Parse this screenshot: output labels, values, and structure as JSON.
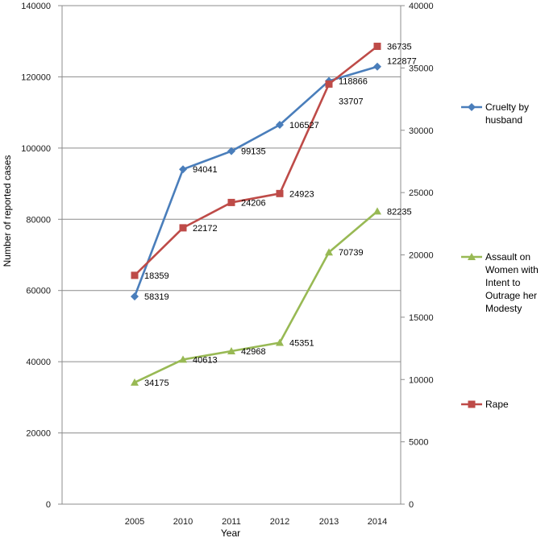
{
  "chart_data": {
    "type": "line",
    "title": "",
    "xlabel": "Year",
    "ylabel": "Number of reported cases",
    "categories": [
      "2005",
      "2010",
      "2011",
      "2012",
      "2013",
      "2014"
    ],
    "y_left": {
      "min": 0,
      "max": 140000,
      "step": 20000,
      "ticks": [
        "0",
        "20000",
        "40000",
        "60000",
        "80000",
        "100000",
        "120000",
        "140000"
      ]
    },
    "y_right": {
      "min": 0,
      "max": 40000,
      "step": 5000,
      "ticks": [
        "0",
        "5000",
        "10000",
        "15000",
        "20000",
        "25000",
        "30000",
        "35000",
        "40000"
      ]
    },
    "grid": true,
    "legend_position": "right",
    "series": [
      {
        "name": "Cruelty by husband",
        "legend_lines": [
          "Cruelty by",
          "husband"
        ],
        "axis": "left",
        "marker": "diamond",
        "color": "#4a7ebb",
        "values": [
          58319,
          94041,
          99135,
          106527,
          118866,
          122877
        ],
        "labels": [
          "58319",
          "94041",
          "99135",
          "106527",
          "118866",
          "122877"
        ]
      },
      {
        "name": "Assault on Women with Intent to Outrage her Modesty",
        "legend_lines": [
          "Assault on",
          "Women with",
          "Intent to",
          "Outrage her",
          "Modesty"
        ],
        "axis": "left",
        "marker": "triangle",
        "color": "#98b954",
        "values": [
          34175,
          40613,
          42968,
          45351,
          70739,
          82235
        ],
        "labels": [
          "34175",
          "40613",
          "42968",
          "45351",
          "70739",
          "82235"
        ]
      },
      {
        "name": "Rape",
        "legend_lines": [
          "Rape"
        ],
        "axis": "right",
        "marker": "square",
        "color": "#be4b48",
        "values": [
          18359,
          22172,
          24206,
          24923,
          33707,
          36735
        ],
        "labels": [
          "18359",
          "22172",
          "24206",
          "24923",
          "33707",
          "36735"
        ]
      }
    ]
  }
}
